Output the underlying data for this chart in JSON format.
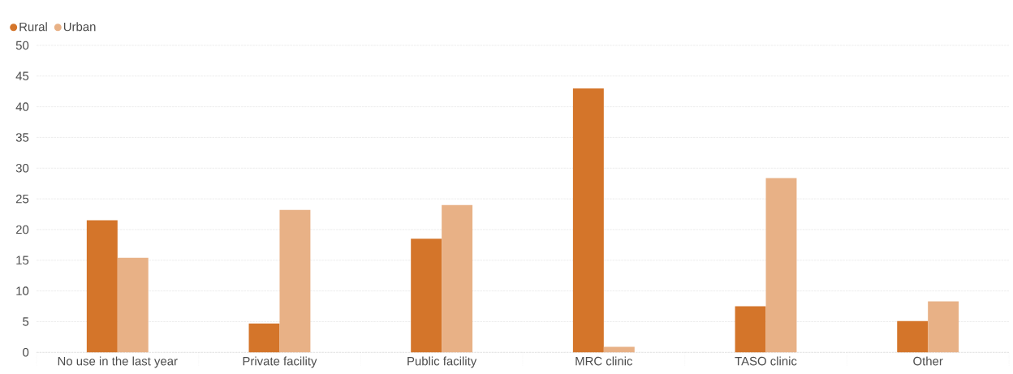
{
  "chart_data": {
    "type": "bar",
    "categories": [
      "No use in the last year",
      "Private facility",
      "Public facility",
      "MRC clinic",
      "TASO clinic",
      "Other"
    ],
    "series": [
      {
        "name": "Rural",
        "color": "#d4752a",
        "values": [
          21.5,
          4.7,
          18.5,
          43.0,
          7.5,
          5.1
        ]
      },
      {
        "name": "Urban",
        "color": "#e8b186",
        "values": [
          15.4,
          23.2,
          24.0,
          0.9,
          28.4,
          8.3
        ]
      }
    ],
    "ylim": [
      0,
      50
    ],
    "yticks": [
      0,
      5,
      10,
      15,
      20,
      25,
      30,
      35,
      40,
      45,
      50
    ],
    "grid": "y",
    "legend": "top left"
  }
}
